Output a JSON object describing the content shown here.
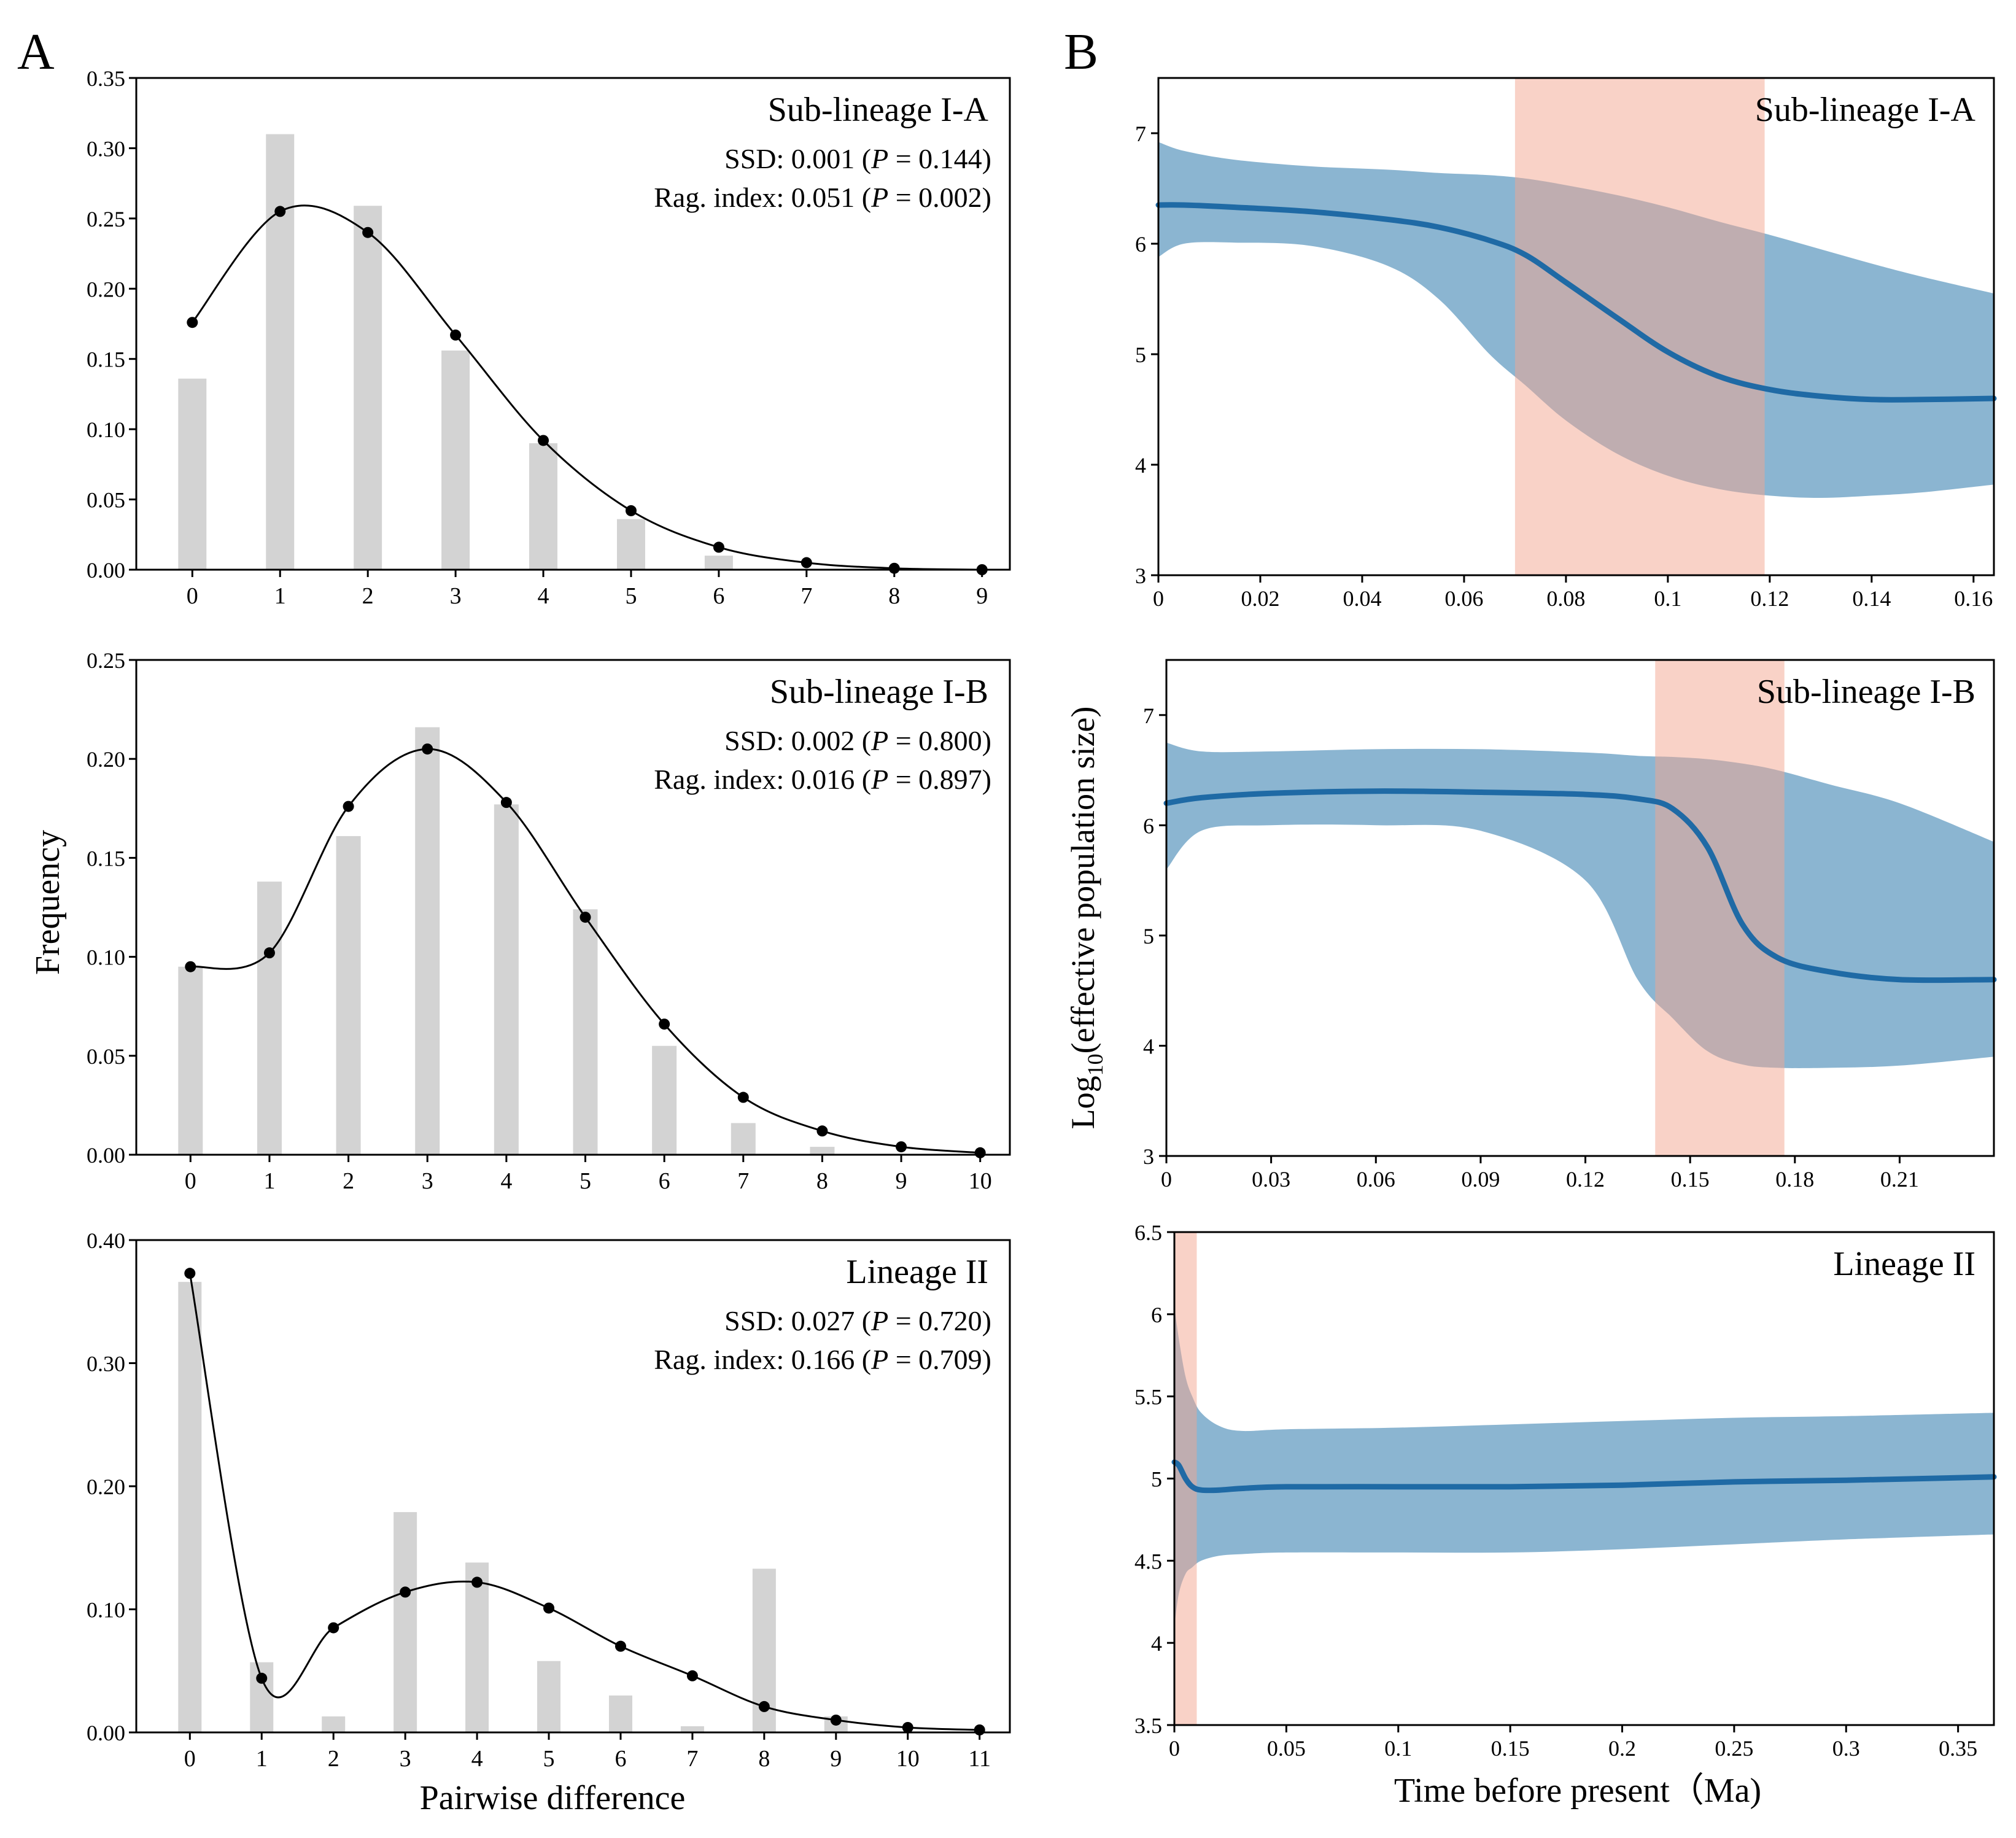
{
  "panel_labels": {
    "a": "A",
    "b": "B"
  },
  "shared_labels": {
    "frequency": "Frequency",
    "pairwise": "Pairwise difference",
    "log_prefix": "Log",
    "log_sub": "10",
    "log_rest": "(effective population size)",
    "time": "Time before present（Ma)"
  },
  "colors": {
    "bar": "#d3d3d3",
    "curve": "#000000",
    "ci": "#8bb5d1",
    "median": "#1f6aa5",
    "shade": "#f4a690",
    "axis": "#000000"
  },
  "chart_data": [
    {
      "id": "mm_IA",
      "type": "bar",
      "panel": "A",
      "title": "Sub-lineage I-A",
      "stat1": {
        "pre": "SSD: 0.001 (",
        "p": "P",
        "post": " = 0.144)"
      },
      "stat2": {
        "pre": "Rag. index: 0.051 (",
        "p": "P",
        "post": " = 0.002)"
      },
      "categories": [
        "0",
        "1",
        "2",
        "3",
        "4",
        "5",
        "6",
        "7",
        "8",
        "9"
      ],
      "observed": [
        0.136,
        0.31,
        0.259,
        0.156,
        0.09,
        0.036,
        0.01,
        0.0,
        0.0,
        0.0
      ],
      "expected": [
        0.176,
        0.255,
        0.24,
        0.167,
        0.092,
        0.042,
        0.016,
        0.005,
        0.001,
        0.0
      ],
      "ylim": [
        0,
        0.35
      ],
      "yticks": [
        "0.00",
        "0.05",
        "0.10",
        "0.15",
        "0.20",
        "0.25",
        "0.30",
        "0.35"
      ],
      "xlabel": "",
      "ylabel": ""
    },
    {
      "id": "mm_IB",
      "type": "bar",
      "panel": "A",
      "title": "Sub-lineage I-B",
      "stat1": {
        "pre": "SSD: 0.002 (",
        "p": "P",
        "post": " = 0.800)"
      },
      "stat2": {
        "pre": "Rag. index: 0.016 (",
        "p": "P",
        "post": " = 0.897)"
      },
      "categories": [
        "0",
        "1",
        "2",
        "3",
        "4",
        "5",
        "6",
        "7",
        "8",
        "9",
        "10"
      ],
      "observed": [
        0.095,
        0.138,
        0.161,
        0.216,
        0.177,
        0.124,
        0.055,
        0.016,
        0.004,
        0.0,
        0.0
      ],
      "expected": [
        0.095,
        0.102,
        0.176,
        0.205,
        0.178,
        0.12,
        0.066,
        0.029,
        0.012,
        0.004,
        0.001
      ],
      "ylim": [
        0,
        0.25
      ],
      "yticks": [
        "0.00",
        "0.05",
        "0.10",
        "0.15",
        "0.20",
        "0.25"
      ],
      "xlabel": "",
      "ylabel": "Frequency"
    },
    {
      "id": "mm_II",
      "type": "bar",
      "panel": "A",
      "title": "Lineage II",
      "stat1": {
        "pre": "SSD: 0.027 (",
        "p": "P",
        "post": " = 0.720)"
      },
      "stat2": {
        "pre": "Rag. index: 0.166 (",
        "p": "P",
        "post": " = 0.709)"
      },
      "categories": [
        "0",
        "1",
        "2",
        "3",
        "4",
        "5",
        "6",
        "7",
        "8",
        "9",
        "10",
        "11"
      ],
      "observed": [
        0.366,
        0.057,
        0.013,
        0.179,
        0.138,
        0.058,
        0.03,
        0.005,
        0.133,
        0.013,
        0.0,
        0.0
      ],
      "expected": [
        0.373,
        0.044,
        0.085,
        0.114,
        0.122,
        0.101,
        0.07,
        0.046,
        0.021,
        0.01,
        0.004,
        0.002
      ],
      "ylim": [
        0,
        0.4
      ],
      "yticks": [
        "0.00",
        "0.10",
        "0.20",
        "0.30",
        "0.40"
      ],
      "xlabel": "Pairwise difference",
      "ylabel": ""
    },
    {
      "id": "bsp_IA",
      "type": "area",
      "panel": "B",
      "title": "Sub-lineage I-A",
      "xlim": [
        0,
        0.164
      ],
      "ylim": [
        3,
        7.5
      ],
      "xticks": [
        0,
        0.02,
        0.04,
        0.06,
        0.08,
        0.1,
        0.12,
        0.14,
        0.16
      ],
      "xtick_labels": [
        "0",
        "0.02",
        "0.04",
        "0.06",
        "0.08",
        "0.1",
        "0.12",
        "0.14",
        "0.16"
      ],
      "yticks": [
        3,
        4,
        5,
        6,
        7
      ],
      "ytick_labels": [
        "3",
        "4",
        "5",
        "6",
        "7"
      ],
      "x": [
        0,
        0.005,
        0.015,
        0.03,
        0.045,
        0.055,
        0.065,
        0.072,
        0.08,
        0.09,
        0.1,
        0.11,
        0.12,
        0.13,
        0.14,
        0.15,
        0.164
      ],
      "median": [
        6.35,
        6.35,
        6.33,
        6.29,
        6.22,
        6.15,
        6.03,
        5.9,
        5.65,
        5.33,
        5.02,
        4.8,
        4.68,
        4.62,
        4.59,
        4.59,
        4.6
      ],
      "lower": [
        5.88,
        6.0,
        6.01,
        5.98,
        5.8,
        5.5,
        5.0,
        4.72,
        4.4,
        4.1,
        3.9,
        3.78,
        3.72,
        3.7,
        3.72,
        3.75,
        3.82
      ],
      "upper": [
        6.92,
        6.84,
        6.76,
        6.7,
        6.67,
        6.64,
        6.62,
        6.59,
        6.53,
        6.44,
        6.33,
        6.2,
        6.08,
        5.95,
        5.82,
        5.7,
        5.55
      ],
      "shade": [
        0.07,
        0.119
      ],
      "xlabel": "",
      "ylabel": ""
    },
    {
      "id": "bsp_IB",
      "type": "area",
      "panel": "B",
      "title": "Sub-lineage I-B",
      "xlim": [
        0,
        0.237
      ],
      "ylim": [
        3,
        7.5
      ],
      "xticks": [
        0,
        0.03,
        0.06,
        0.09,
        0.12,
        0.15,
        0.18,
        0.21
      ],
      "xtick_labels": [
        "0",
        "0.03",
        "0.06",
        "0.09",
        "0.12",
        "0.15",
        "0.18",
        "0.21"
      ],
      "yticks": [
        3,
        4,
        5,
        6,
        7
      ],
      "ytick_labels": [
        "3",
        "4",
        "5",
        "6",
        "7"
      ],
      "x": [
        0,
        0.01,
        0.03,
        0.06,
        0.09,
        0.12,
        0.135,
        0.145,
        0.155,
        0.165,
        0.175,
        0.19,
        0.21,
        0.237
      ],
      "median": [
        6.2,
        6.25,
        6.29,
        6.31,
        6.3,
        6.28,
        6.24,
        6.15,
        5.8,
        5.1,
        4.8,
        4.67,
        4.6,
        4.6
      ],
      "lower": [
        5.6,
        5.95,
        6.0,
        6.0,
        5.95,
        5.5,
        4.6,
        4.25,
        3.95,
        3.83,
        3.8,
        3.8,
        3.82,
        3.9
      ],
      "upper": [
        6.75,
        6.67,
        6.67,
        6.69,
        6.69,
        6.66,
        6.63,
        6.62,
        6.6,
        6.56,
        6.5,
        6.37,
        6.2,
        5.85
      ],
      "shade": [
        0.14,
        0.177
      ],
      "xlabel": "",
      "ylabel": ""
    },
    {
      "id": "bsp_II",
      "type": "area",
      "panel": "B",
      "title": "Lineage II",
      "xlim": [
        0,
        0.366
      ],
      "ylim": [
        3.5,
        6.5
      ],
      "xticks": [
        0,
        0.05,
        0.1,
        0.15,
        0.2,
        0.25,
        0.3,
        0.35
      ],
      "xtick_labels": [
        "0",
        "0.05",
        "0.1",
        "0.15",
        "0.2",
        "0.25",
        "0.3",
        "0.35"
      ],
      "yticks": [
        3.5,
        4,
        4.5,
        5,
        5.5,
        6,
        6.5
      ],
      "ytick_labels": [
        "3.5",
        "4",
        "4.5",
        "5",
        "5.5",
        "6",
        "6.5"
      ],
      "x": [
        0,
        0.002,
        0.005,
        0.008,
        0.012,
        0.02,
        0.03,
        0.05,
        0.1,
        0.15,
        0.2,
        0.25,
        0.3,
        0.366
      ],
      "median": [
        5.1,
        5.08,
        5.0,
        4.95,
        4.93,
        4.93,
        4.94,
        4.95,
        4.95,
        4.95,
        4.96,
        4.98,
        4.99,
        5.01
      ],
      "lower": [
        4.1,
        4.3,
        4.42,
        4.46,
        4.5,
        4.53,
        4.54,
        4.55,
        4.55,
        4.55,
        4.57,
        4.6,
        4.63,
        4.66
      ],
      "upper": [
        6.05,
        5.85,
        5.62,
        5.5,
        5.4,
        5.32,
        5.29,
        5.3,
        5.31,
        5.33,
        5.35,
        5.37,
        5.38,
        5.4
      ],
      "shade": [
        0.0,
        0.01
      ],
      "xlabel": "Time before present（Ma)",
      "ylabel": ""
    }
  ]
}
